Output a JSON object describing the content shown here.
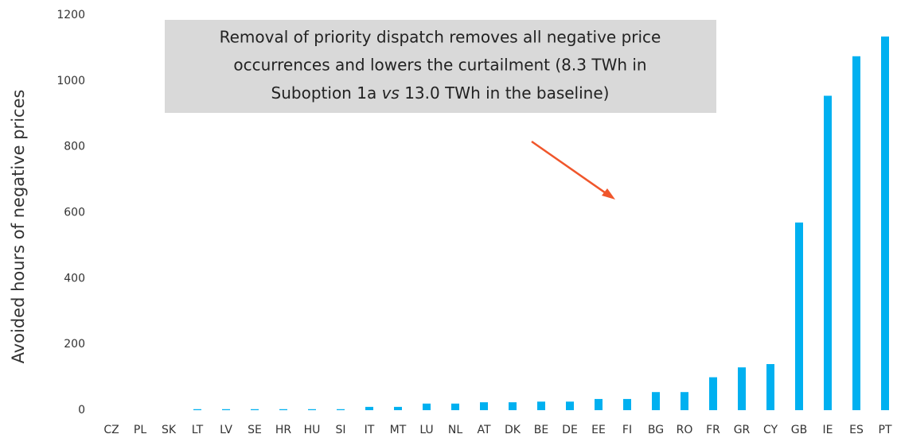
{
  "chart_data": {
    "type": "bar",
    "y_label": "Avoided hours of negative prices",
    "annotation": {
      "line1": "Removal of priority dispatch removes all negative price",
      "line2": "occurrences and lowers the curtailment (8.3 TWh in",
      "line3": [
        "Suboption 1a",
        "vs",
        "13.0 TWh in the baseline)"
      ]
    },
    "categories": [
      "CZ",
      "PL",
      "SK",
      "LT",
      "LV",
      "SE",
      "HR",
      "HU",
      "SI",
      "IT",
      "MT",
      "LU",
      "NL",
      "AT",
      "DK",
      "BE",
      "DE",
      "EE",
      "FI",
      "BG",
      "RO",
      "FR",
      "GR",
      "CY",
      "GB",
      "IE",
      "ES",
      "PT"
    ],
    "values": [
      0,
      0,
      0,
      3,
      3,
      3,
      3,
      3,
      3,
      10,
      10,
      20,
      20,
      24,
      24,
      26,
      26,
      34,
      34,
      55,
      55,
      100,
      130,
      140,
      570,
      955,
      1075,
      1135
    ],
    "color": "#00b0f0",
    "ylim": [
      0,
      1200
    ],
    "yticks": [
      0,
      200,
      400,
      600,
      800,
      1000,
      1200
    ],
    "grid": false
  }
}
